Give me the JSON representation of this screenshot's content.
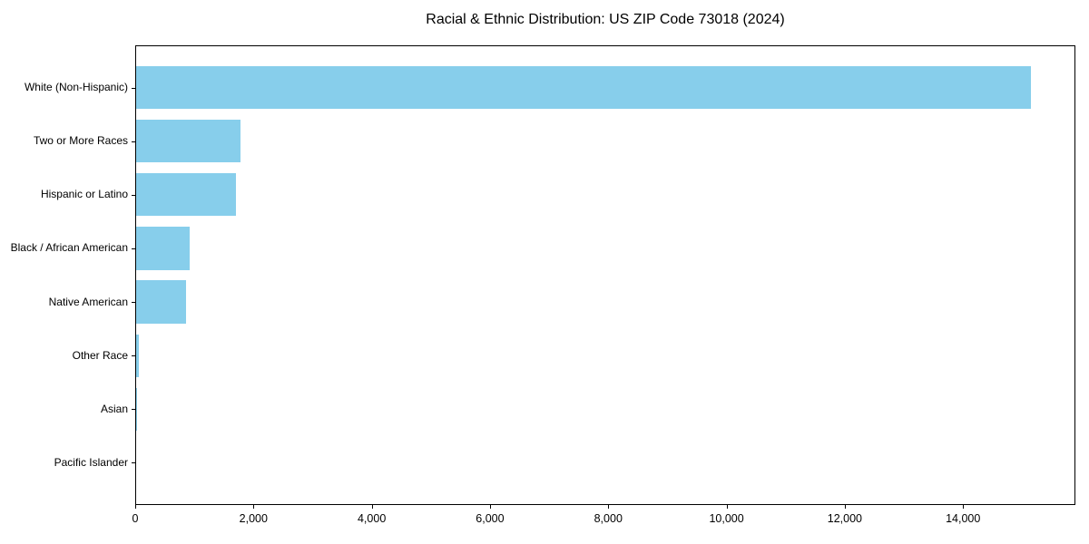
{
  "chart_data": {
    "type": "bar",
    "orientation": "horizontal",
    "title": "Racial & Ethnic Distribution: US ZIP Code 73018 (2024)",
    "categories": [
      "White (Non-Hispanic)",
      "Two or More Races",
      "Hispanic or Latino",
      "Black / African American",
      "Native American",
      "Other Race",
      "Asian",
      "Pacific Islander"
    ],
    "values": [
      15150,
      1780,
      1700,
      920,
      860,
      60,
      25,
      5
    ],
    "xlabel": "",
    "ylabel": "",
    "xlim": [
      0,
      15900
    ],
    "xticks": [
      0,
      2000,
      4000,
      6000,
      8000,
      10000,
      12000,
      14000
    ],
    "xtick_labels": [
      "0",
      "2,000",
      "4,000",
      "6,000",
      "8,000",
      "10,000",
      "12,000",
      "14,000"
    ],
    "bar_color": "#87CEEB",
    "frame_color": "#000000",
    "text_color": "#000000",
    "grid": false,
    "legend": "none",
    "bar_height_fraction": 0.8
  }
}
